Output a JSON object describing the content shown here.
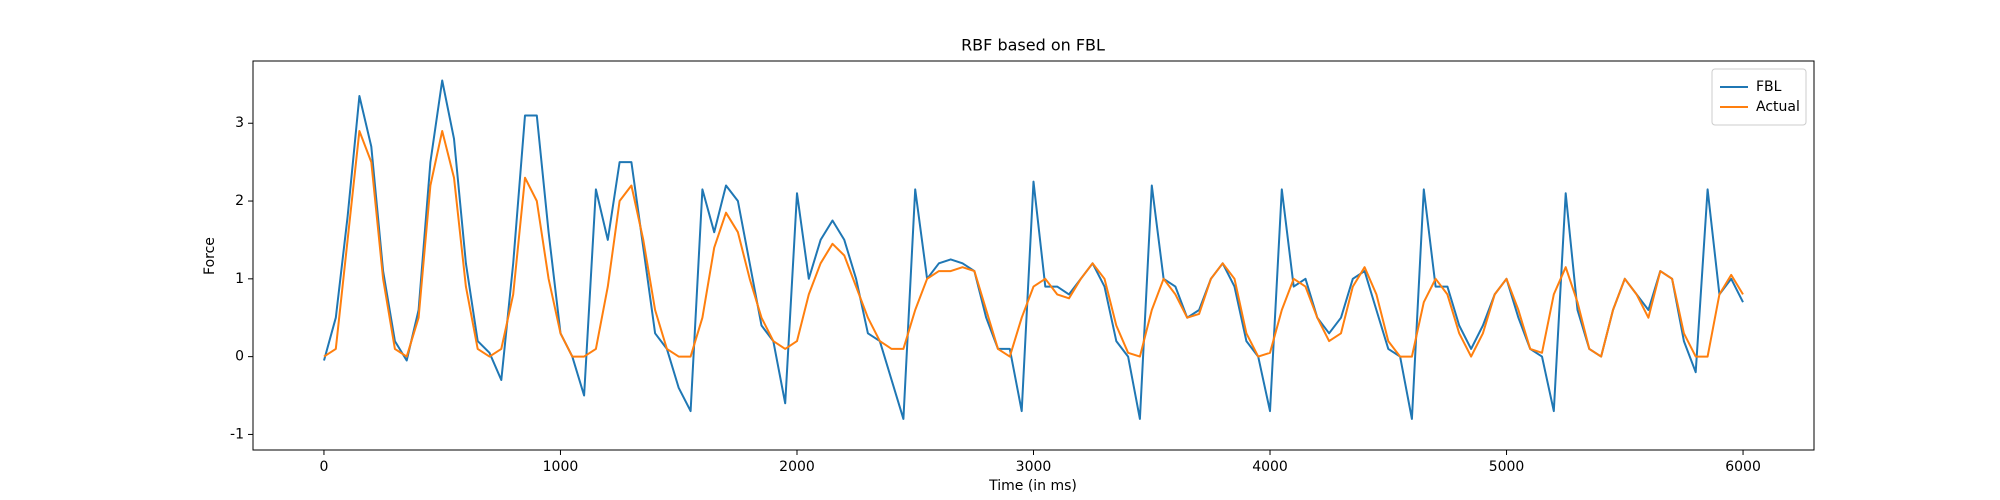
{
  "chart_data": {
    "type": "line",
    "title": "RBF based on FBL",
    "xlabel": "Time (in ms)",
    "ylabel": "Force",
    "x": [
      0,
      50,
      100,
      150,
      200,
      250,
      300,
      350,
      400,
      450,
      500,
      550,
      600,
      650,
      700,
      750,
      800,
      850,
      900,
      950,
      1000,
      1050,
      1100,
      1150,
      1200,
      1250,
      1300,
      1350,
      1400,
      1450,
      1500,
      1550,
      1600,
      1650,
      1700,
      1750,
      1800,
      1850,
      1900,
      1950,
      2000,
      2050,
      2100,
      2150,
      2200,
      2250,
      2300,
      2350,
      2400,
      2450,
      2500,
      2550,
      2600,
      2650,
      2700,
      2750,
      2800,
      2850,
      2900,
      2950,
      3000,
      3050,
      3100,
      3150,
      3200,
      3250,
      3300,
      3350,
      3400,
      3450,
      3500,
      3550,
      3600,
      3650,
      3700,
      3750,
      3800,
      3850,
      3900,
      3950,
      4000,
      4050,
      4100,
      4150,
      4200,
      4250,
      4300,
      4350,
      4400,
      4450,
      4500,
      4550,
      4600,
      4650,
      4700,
      4750,
      4800,
      4850,
      4900,
      4950,
      5000,
      5050,
      5100,
      5150,
      5200,
      5250,
      5300,
      5350,
      5400,
      5450,
      5500,
      5550,
      5600,
      5650,
      5700,
      5750,
      5800,
      5850,
      5900,
      5950,
      6000
    ],
    "series": [
      {
        "name": "FBL",
        "color": "#1f77b4",
        "values": [
          -0.05,
          0.5,
          1.8,
          3.35,
          2.7,
          1.1,
          0.2,
          -0.05,
          0.6,
          2.5,
          3.55,
          2.8,
          1.2,
          0.2,
          0.05,
          -0.3,
          1.2,
          3.1,
          3.1,
          1.6,
          0.3,
          0,
          -0.5,
          2.15,
          1.5,
          2.5,
          2.5,
          1.4,
          0.3,
          0.1,
          -0.4,
          -0.7,
          2.15,
          1.6,
          2.2,
          2.0,
          1.2,
          0.4,
          0.2,
          -0.6,
          2.1,
          1.0,
          1.5,
          1.75,
          1.5,
          1.0,
          0.3,
          0.2,
          -0.3,
          -0.8,
          2.15,
          1.0,
          1.2,
          1.25,
          1.2,
          1.1,
          0.5,
          0.1,
          0.1,
          -0.7,
          2.25,
          0.9,
          0.9,
          0.8,
          1.0,
          1.2,
          0.9,
          0.2,
          0,
          -0.8,
          2.2,
          1.0,
          0.9,
          0.5,
          0.6,
          1.0,
          1.2,
          0.9,
          0.2,
          0,
          -0.7,
          2.15,
          0.9,
          1.0,
          0.5,
          0.3,
          0.5,
          1.0,
          1.1,
          0.6,
          0.1,
          0,
          -0.8,
          2.15,
          0.9,
          0.9,
          0.4,
          0.1,
          0.4,
          0.8,
          1.0,
          0.5,
          0.1,
          0,
          -0.7,
          2.1,
          0.6,
          0.1,
          0,
          0.6,
          1.0,
          0.8,
          0.6,
          1.1,
          1.0,
          0.2,
          -0.2,
          2.15,
          0.8,
          1.0,
          0.7
        ]
      },
      {
        "name": "Actual",
        "color": "#ff7f0e",
        "values": [
          0,
          0.1,
          1.5,
          2.9,
          2.5,
          1.0,
          0.1,
          0,
          0.5,
          2.2,
          2.9,
          2.3,
          0.9,
          0.1,
          0,
          0.1,
          0.8,
          2.3,
          2.0,
          1.0,
          0.3,
          0,
          0,
          0.1,
          0.9,
          2.0,
          2.2,
          1.5,
          0.6,
          0.1,
          0,
          0,
          0.5,
          1.4,
          1.85,
          1.6,
          1.0,
          0.5,
          0.2,
          0.1,
          0.2,
          0.8,
          1.2,
          1.45,
          1.3,
          0.9,
          0.5,
          0.2,
          0.1,
          0.1,
          0.6,
          1.0,
          1.1,
          1.1,
          1.15,
          1.1,
          0.6,
          0.1,
          0,
          0.5,
          0.9,
          1.0,
          0.8,
          0.75,
          1.0,
          1.2,
          1.0,
          0.4,
          0.05,
          0,
          0.6,
          1.0,
          0.8,
          0.5,
          0.55,
          1.0,
          1.2,
          1.0,
          0.3,
          0,
          0.05,
          0.6,
          1.0,
          0.9,
          0.5,
          0.2,
          0.3,
          0.9,
          1.15,
          0.8,
          0.2,
          0,
          0,
          0.7,
          1.0,
          0.8,
          0.3,
          0,
          0.3,
          0.8,
          1.0,
          0.6,
          0.1,
          0.05,
          0.8,
          1.15,
          0.7,
          0.1,
          0,
          0.6,
          1.0,
          0.8,
          0.5,
          1.1,
          1.0,
          0.3,
          0,
          0,
          0.8,
          1.05,
          0.8
        ]
      }
    ],
    "xlim": [
      -300,
      6300
    ],
    "xticks": [
      0,
      1000,
      2000,
      3000,
      4000,
      5000,
      6000
    ],
    "ylim": [
      -1.2,
      3.8
    ],
    "yticks": [
      -1,
      0,
      1,
      2,
      3
    ],
    "legend": "upper right"
  }
}
